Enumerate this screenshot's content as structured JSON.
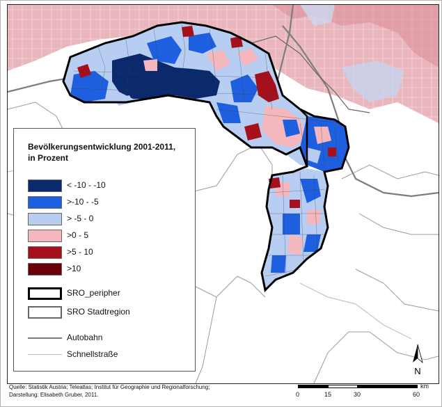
{
  "legend": {
    "title_line1": "Bevölkerungsentwicklung 2001-2011,",
    "title_line2": "in Prozent",
    "classes": [
      {
        "label": "< -10 - -10",
        "color": "#0b2a6e"
      },
      {
        "label": ">-10 - -5",
        "color": "#1e5fe0"
      },
      {
        "label": "> -5 - 0",
        "color": "#b8cdf2"
      },
      {
        "label": ">0 - 5",
        "color": "#f4b7be"
      },
      {
        "label": ">5 - 10",
        "color": "#a5101a"
      },
      {
        "label": ">10",
        "color": "#6a0008"
      }
    ],
    "outline_peripher": "SRO_peripher",
    "outline_stadtregion": "SRO Stadtregion",
    "line_autobahn": "Autobahn",
    "line_schnellstrasse": "Schnellstraße"
  },
  "credit": {
    "line1": "Quelle: Statistik Austria; Teleatlas; Institut für Geographie und Regionalforschung;",
    "line2": "Darstellung: Elisabeth Gruber, 2011."
  },
  "scale": {
    "unit": "km",
    "ticks": [
      "0",
      "15",
      "30",
      "60"
    ]
  },
  "north_label": "N",
  "colors": {
    "background_region": "#e9b7bd",
    "background_region_light": "#d9dff0",
    "border_lines": "#8a8a8a",
    "autobahn": "#7d7d7d"
  }
}
